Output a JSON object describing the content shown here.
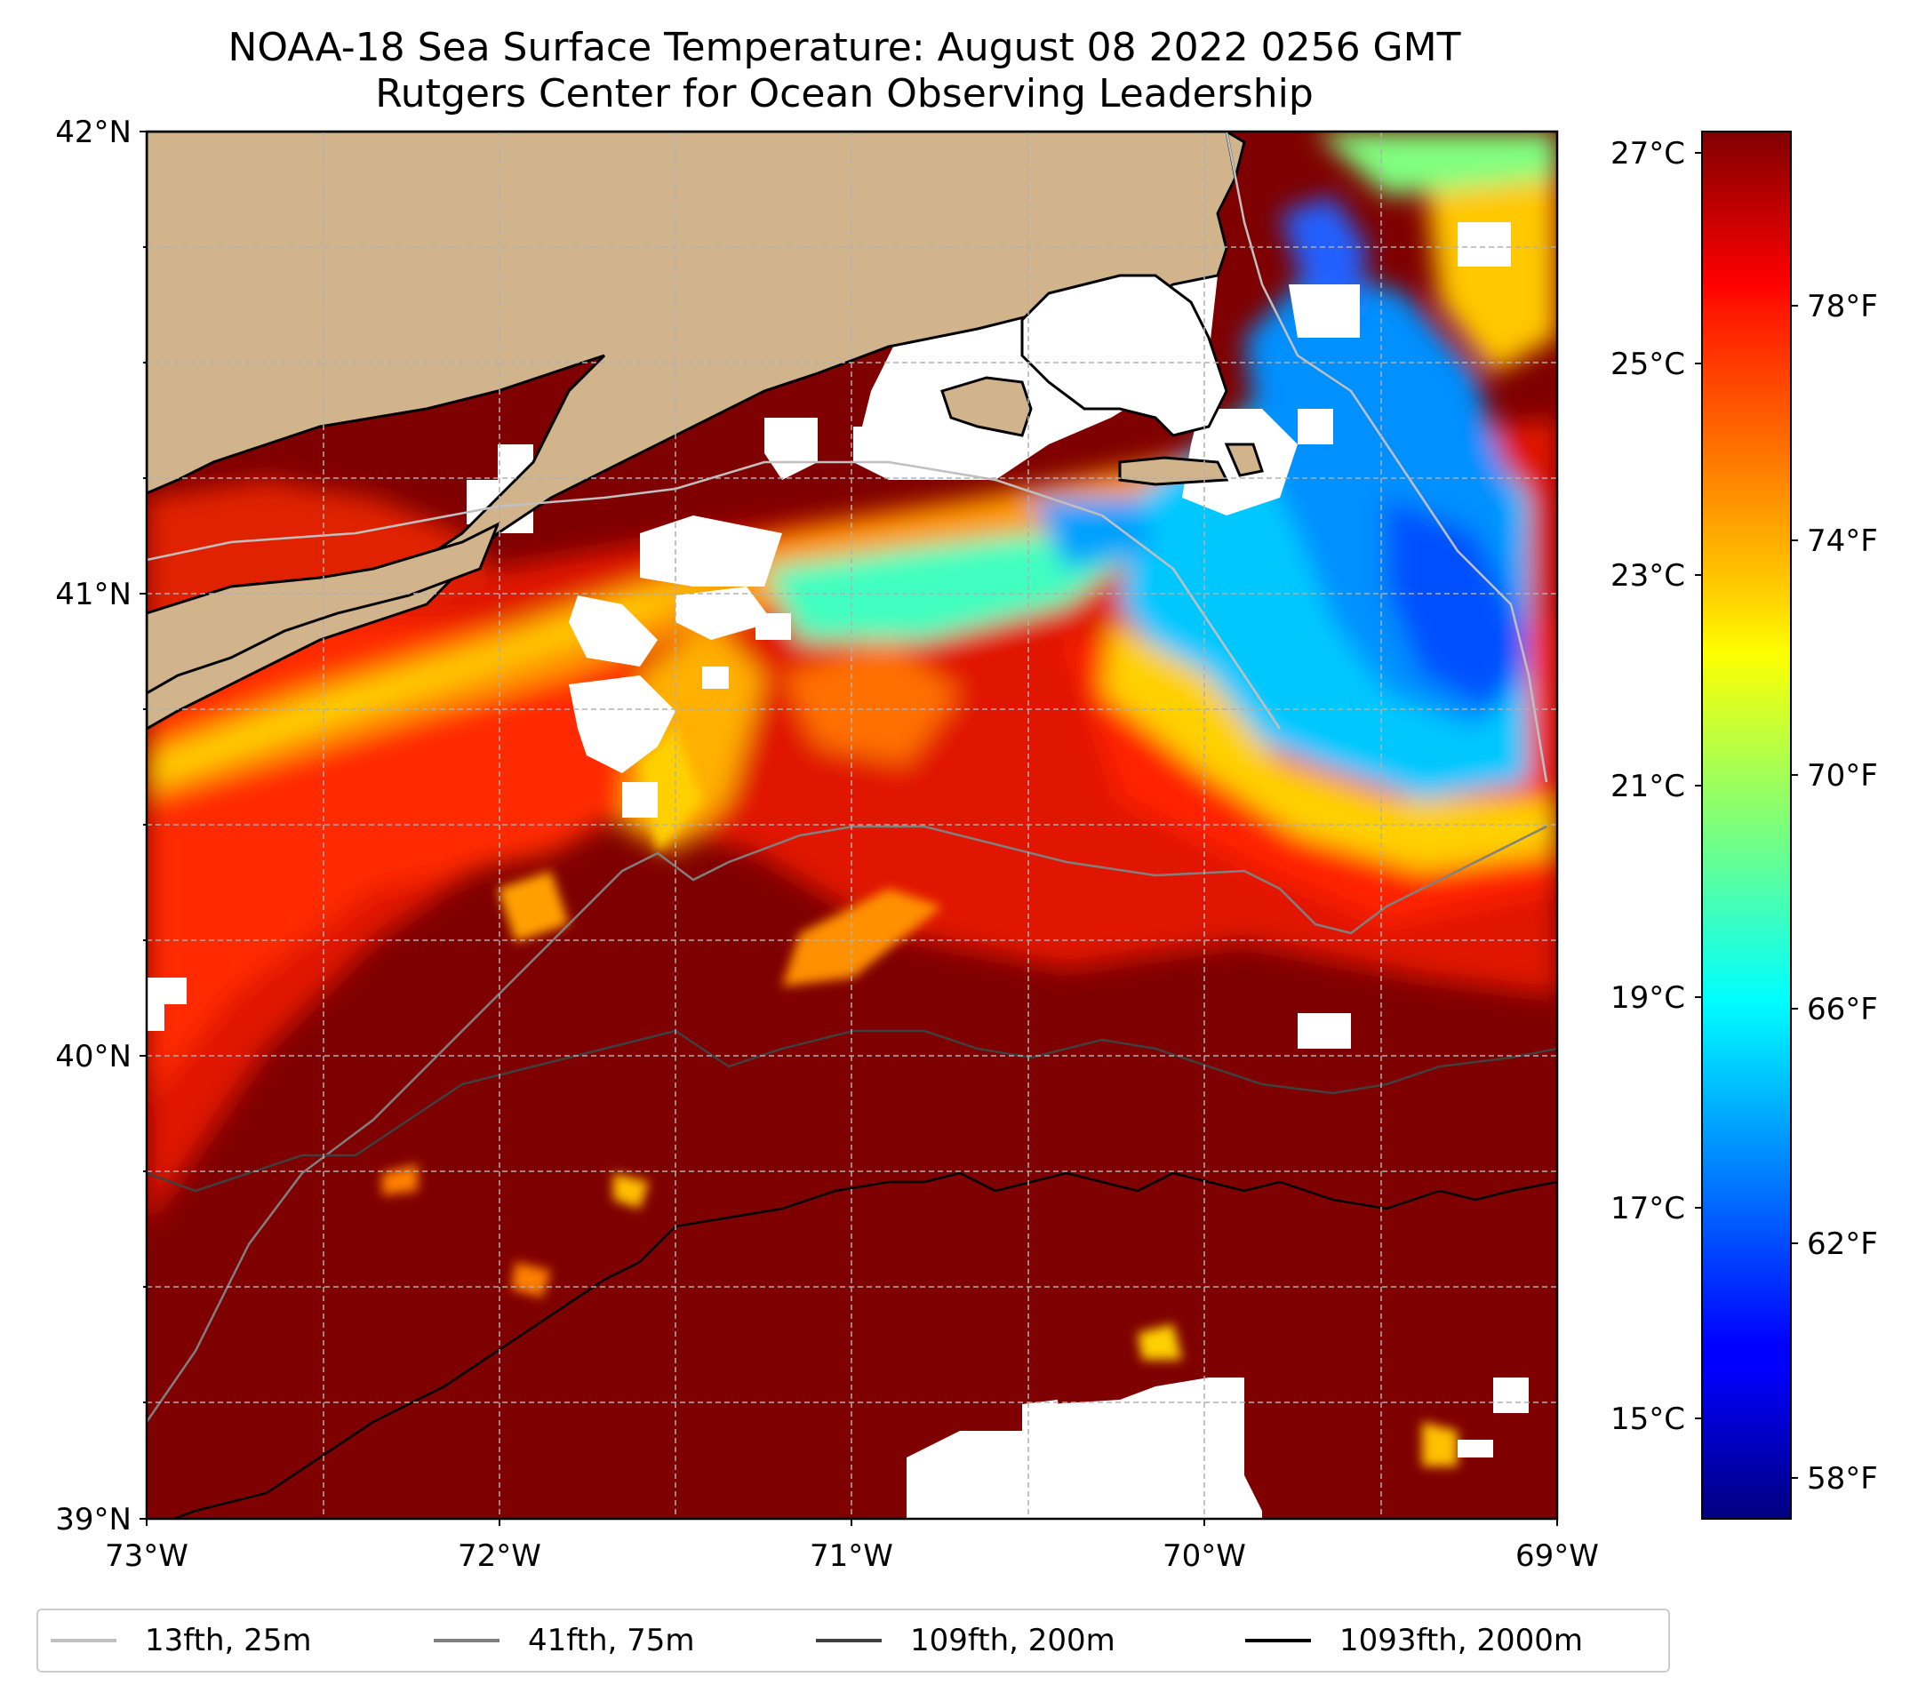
{
  "title": "NOAA-18 Sea Surface Temperature: August 08 2022 0256 GMT",
  "subtitle": "Rutgers Center for Ocean Observing Leadership",
  "map": {
    "lon_range": [
      -73,
      -69
    ],
    "lat_range": [
      39,
      42
    ],
    "lon_ticks": [
      "73°W",
      "72°W",
      "71°W",
      "70°W",
      "69°W"
    ],
    "lat_ticks": [
      "42°N",
      "41°N",
      "40°N",
      "39°N"
    ],
    "gridlines": true,
    "land_color": "#d2b48c",
    "no_data_color": "#ffffff"
  },
  "colorbar": {
    "colormap": "jet",
    "celsius_ticks": [
      "27°C",
      "25°C",
      "23°C",
      "21°C",
      "19°C",
      "17°C",
      "15°C"
    ],
    "fahrenheit_ticks": [
      "78°F",
      "74°F",
      "70°F",
      "66°F",
      "62°F",
      "58°F"
    ],
    "range_f": [
      56.5,
      80.5
    ]
  },
  "legend": {
    "items": [
      {
        "label": "13fth, 25m",
        "color": "#c0c0c0"
      },
      {
        "label": "41fth, 75m",
        "color": "#808080"
      },
      {
        "label": "109fth, 200m",
        "color": "#404040"
      },
      {
        "label": "1093fth, 2000m",
        "color": "#000000"
      }
    ]
  }
}
